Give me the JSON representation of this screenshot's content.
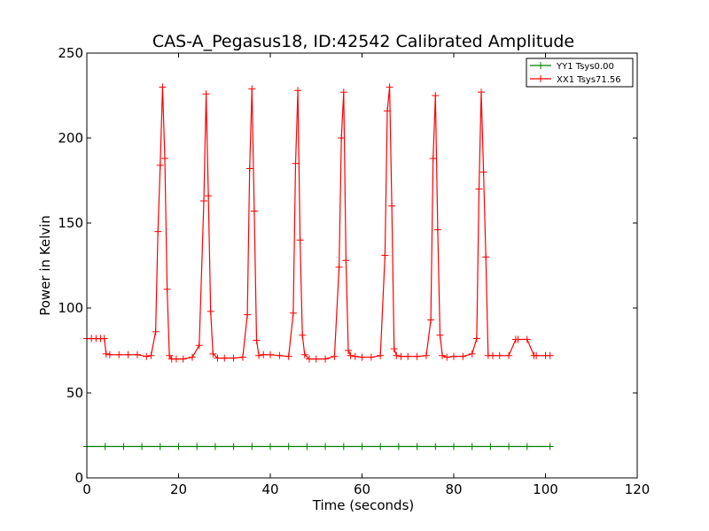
{
  "chart_data": {
    "type": "line",
    "title": "CAS-A_Pegasus18, ID:42542 Calibrated Amplitude",
    "xlabel": "Time (seconds)",
    "ylabel": "Power in Kelvin",
    "xlim": [
      0,
      120
    ],
    "ylim": [
      0,
      250
    ],
    "xticks": [
      "0",
      "20",
      "40",
      "60",
      "80",
      "100",
      "120"
    ],
    "yticks": [
      "0",
      "50",
      "100",
      "150",
      "200",
      "250"
    ],
    "grid": false,
    "legend_position": "top-right",
    "series": [
      {
        "name": "YY1 Tsys0.00",
        "color": "#008000",
        "marker": "+",
        "x": [
          0,
          4,
          8,
          12,
          16,
          20,
          24,
          28,
          32,
          36,
          40,
          44,
          48,
          52,
          56,
          60,
          64,
          68,
          72,
          76,
          80,
          84,
          88,
          92,
          96,
          101
        ],
        "y": [
          18.5,
          18.5,
          18.5,
          18.5,
          18.5,
          18.5,
          18.5,
          18.5,
          18.5,
          18.5,
          18.5,
          18.5,
          18.5,
          18.5,
          18.5,
          18.5,
          18.5,
          18.5,
          18.5,
          18.5,
          18.5,
          18.5,
          18.5,
          18.5,
          18.5,
          18.5
        ]
      },
      {
        "name": "XX1 Tsys71.56",
        "color": "#ff0000",
        "marker": "+",
        "x": [
          0,
          1,
          2,
          3,
          3.8,
          4.2,
          5,
          7,
          9,
          11,
          13,
          14,
          15,
          15.5,
          16,
          16.5,
          17,
          17.5,
          18,
          18.5,
          19.5,
          21,
          23,
          24.5,
          25.5,
          26,
          26.5,
          27,
          27.5,
          28.5,
          30,
          32,
          34,
          35,
          35.5,
          36,
          36.5,
          37,
          37.5,
          38.5,
          40,
          42,
          44,
          45,
          45.5,
          46,
          46.5,
          47,
          47.5,
          48.5,
          50,
          52,
          54,
          55,
          55.5,
          56,
          56.5,
          57,
          57.5,
          58.5,
          60,
          62,
          64,
          65,
          65.5,
          66,
          66.5,
          67,
          67.5,
          68.5,
          70,
          72,
          74,
          75,
          75.5,
          76,
          76.5,
          77,
          77.5,
          78.5,
          80,
          82,
          84,
          85,
          85.5,
          86,
          86.5,
          87,
          87.5,
          88.5,
          90,
          92,
          93.5,
          94,
          96,
          97.5,
          98,
          100,
          101
        ],
        "y": [
          82,
          82,
          82,
          82,
          82,
          73,
          72.5,
          72.5,
          72.5,
          72.5,
          71.5,
          72,
          86,
          145,
          184,
          230,
          188,
          111,
          72,
          70,
          70,
          70,
          71,
          78,
          163,
          226,
          166,
          98,
          73,
          70.5,
          70.5,
          70.5,
          71,
          96,
          182,
          229,
          157,
          81,
          72,
          72.5,
          72.5,
          72,
          71.5,
          97,
          185,
          228,
          140,
          84,
          72.5,
          70,
          70,
          70,
          71.5,
          124,
          200,
          227,
          128,
          75,
          72,
          71.5,
          71,
          71,
          72,
          131,
          216,
          230,
          160,
          76,
          72,
          71.5,
          71.5,
          71.5,
          72,
          93,
          188,
          225,
          146,
          84,
          72,
          71,
          71.5,
          71.5,
          73,
          82,
          170,
          227,
          180,
          130,
          72,
          72,
          72,
          72,
          81.5,
          81.5,
          81.5,
          72,
          72,
          72,
          72
        ]
      }
    ]
  }
}
